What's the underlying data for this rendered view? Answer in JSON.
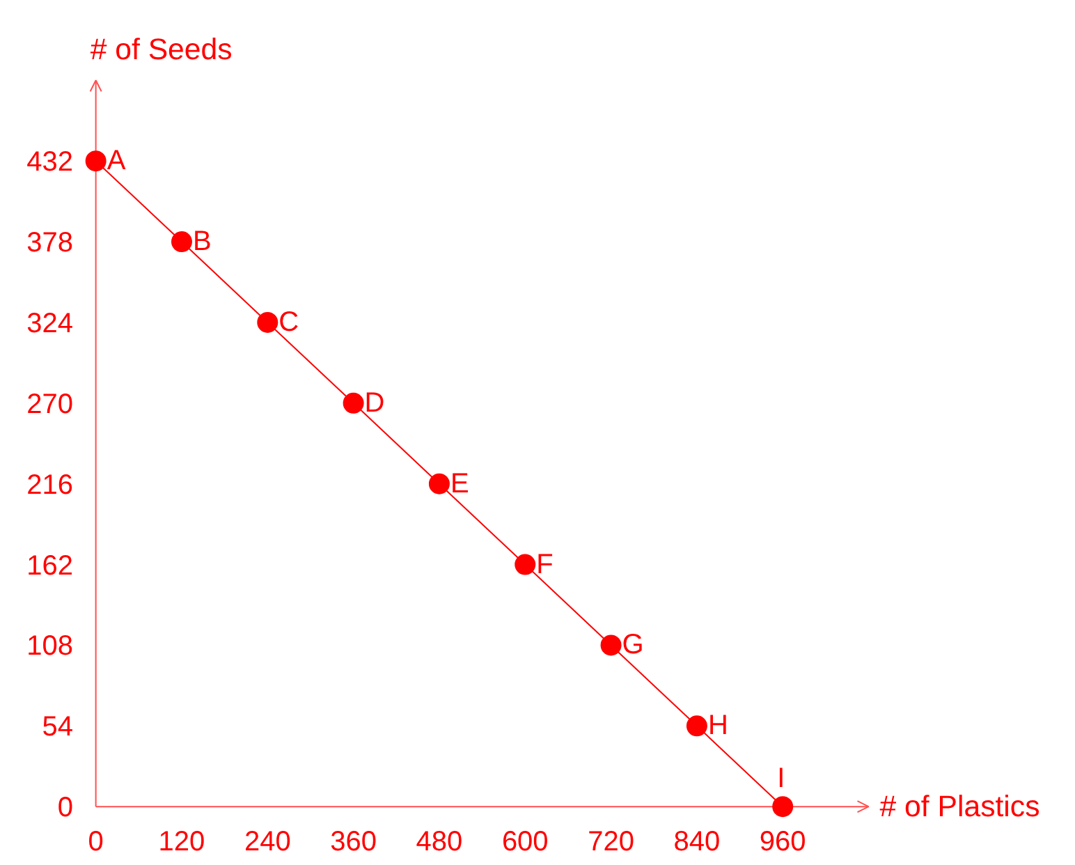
{
  "chart_data": {
    "type": "line",
    "xlabel": "# of Plastics",
    "ylabel": "# of Seeds",
    "x": [
      0,
      120,
      240,
      360,
      480,
      600,
      720,
      840,
      960
    ],
    "series": [
      {
        "color": "#ff0000",
        "values": [
          432,
          378,
          324,
          270,
          216,
          162,
          108,
          54,
          0
        ]
      }
    ],
    "xlim": [
      0,
      1080
    ],
    "ylim": [
      0,
      486
    ],
    "xticks": [
      0,
      120,
      240,
      360,
      480,
      600,
      720,
      840,
      960
    ],
    "yticks": [
      0,
      54,
      108,
      162,
      216,
      270,
      324,
      378,
      432
    ],
    "grid": false,
    "marker": "circle",
    "line_style": "solid",
    "annotations": [
      {
        "text": "A",
        "x": 0,
        "y": 432
      },
      {
        "text": "B",
        "x": 120,
        "y": 378
      },
      {
        "text": "C",
        "x": 240,
        "y": 324
      },
      {
        "text": "D",
        "x": 360,
        "y": 270
      },
      {
        "text": "E",
        "x": 480,
        "y": 216
      },
      {
        "text": "F",
        "x": 600,
        "y": 162
      },
      {
        "text": "G",
        "x": 720,
        "y": 108
      },
      {
        "text": "H",
        "x": 840,
        "y": 54
      },
      {
        "text": "I",
        "x": 960,
        "y": 0
      }
    ]
  }
}
